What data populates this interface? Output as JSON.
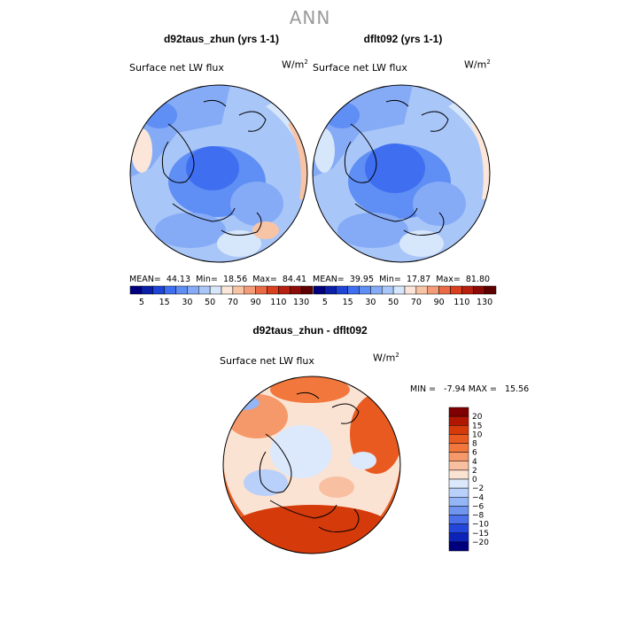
{
  "figure_title": "ANN",
  "panels": [
    {
      "title": "d92taus_zhun (yrs 1-1)",
      "subtitle": "Surface net LW flux",
      "units": "W/m",
      "units_sup": "2",
      "stats": {
        "mean_label": "MEAN=",
        "mean": "44.13",
        "min_label": "Min=",
        "min": "18.56",
        "max_label": "Max=",
        "max": "84.41"
      }
    },
    {
      "title": "dflt092 (yrs 1-1)",
      "subtitle": "Surface net LW flux",
      "units": "W/m",
      "units_sup": "2",
      "stats": {
        "mean_label": "MEAN=",
        "mean": "39.95",
        "min_label": "Min=",
        "min": "17.87",
        "max_label": "Max=",
        "max": "81.80"
      }
    }
  ],
  "diff_panel": {
    "title": "d92taus_zhun - dflt092",
    "subtitle": "Surface net LW flux",
    "units": "W/m",
    "units_sup": "2",
    "stats_text": "MIN =   -7.94 MAX =   15.56"
  },
  "chart_data": [
    {
      "type": "heatmap",
      "projection": "north-polar-stereographic",
      "title": "d92taus_zhun (yrs 1-1)",
      "variable": "Surface net LW flux",
      "units": "W/m2",
      "mean": 44.13,
      "min": 18.56,
      "max": 84.41,
      "colorbar": {
        "levels": [
          5,
          10,
          15,
          20,
          30,
          40,
          50,
          60,
          70,
          80,
          90,
          100,
          110,
          120,
          130
        ],
        "tick_labels": [
          "5",
          "15",
          "30",
          "50",
          "70",
          "90",
          "110",
          "130"
        ],
        "colors": [
          "#00007f",
          "#0a20a8",
          "#1f45d6",
          "#3f6ff0",
          "#5f8ef4",
          "#85abf6",
          "#a9c6f8",
          "#d6e6fb",
          "#fbe6d9",
          "#f8c4a6",
          "#f49b77",
          "#ea6a45",
          "#d8401e",
          "#b71f0e",
          "#8c0b07",
          "#5e0000"
        ]
      }
    },
    {
      "type": "heatmap",
      "projection": "north-polar-stereographic",
      "title": "dflt092 (yrs 1-1)",
      "variable": "Surface net LW flux",
      "units": "W/m2",
      "mean": 39.95,
      "min": 17.87,
      "max": 81.8,
      "colorbar": {
        "levels": [
          5,
          10,
          15,
          20,
          30,
          40,
          50,
          60,
          70,
          80,
          90,
          100,
          110,
          120,
          130
        ],
        "tick_labels": [
          "5",
          "15",
          "30",
          "50",
          "70",
          "90",
          "110",
          "130"
        ],
        "colors": [
          "#00007f",
          "#0a20a8",
          "#1f45d6",
          "#3f6ff0",
          "#5f8ef4",
          "#85abf6",
          "#a9c6f8",
          "#d6e6fb",
          "#fbe6d9",
          "#f8c4a6",
          "#f49b77",
          "#ea6a45",
          "#d8401e",
          "#b71f0e",
          "#8c0b07",
          "#5e0000"
        ]
      }
    },
    {
      "type": "heatmap",
      "projection": "north-polar-stereographic",
      "title": "d92taus_zhun - dflt092",
      "variable": "Surface net LW flux",
      "units": "W/m2",
      "min": -7.94,
      "max": 15.56,
      "colorbar": {
        "levels": [
          20,
          15,
          10,
          8,
          6,
          4,
          2,
          0,
          -2,
          -4,
          -6,
          -8,
          -10,
          -15,
          -20
        ],
        "tick_labels": [
          "20",
          "15",
          "10",
          "8",
          "6",
          "4",
          "2",
          "0",
          "−2",
          "−4",
          "−6",
          "−8",
          "−10",
          "−15",
          "−20"
        ],
        "colors": [
          "#7f0000",
          "#b11700",
          "#d43a0a",
          "#e95a21",
          "#f2773c",
          "#f5986a",
          "#f8bfa1",
          "#fbe3d3",
          "#dce8fb",
          "#b9d0fa",
          "#94b5f6",
          "#6f95ef",
          "#4a70ea",
          "#2346dd",
          "#0c22b8",
          "#00007f"
        ]
      }
    }
  ]
}
